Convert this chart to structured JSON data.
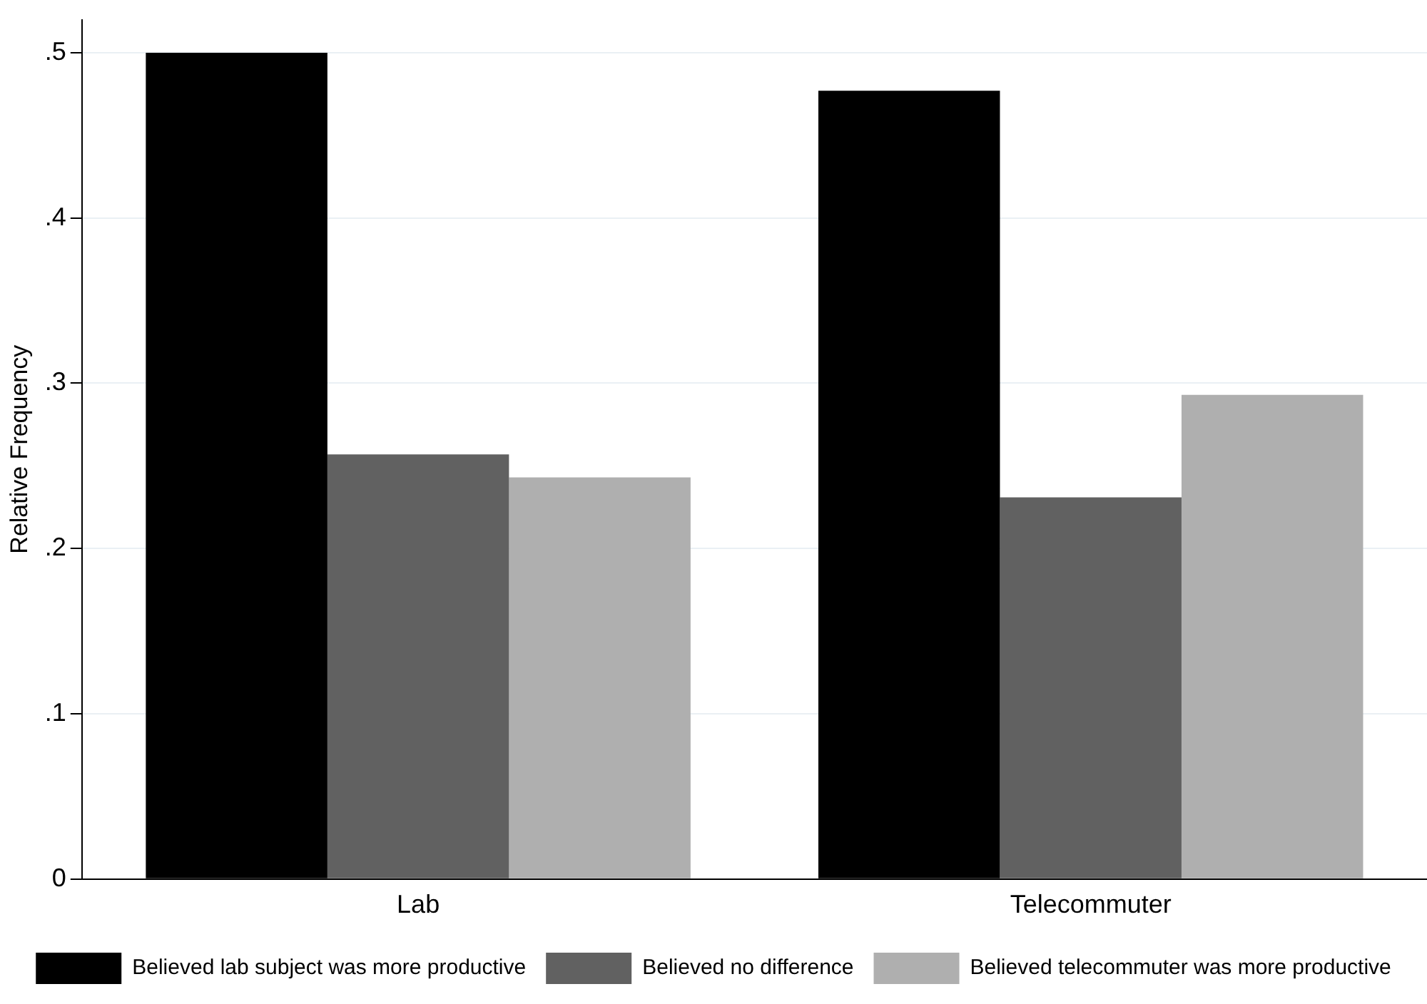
{
  "chart_data": {
    "type": "bar",
    "ylabel": "Relative Frequency",
    "categories": [
      "Lab",
      "Telecommuter"
    ],
    "series": [
      {
        "name": "Believed lab subject was more productive",
        "color": "#000000",
        "values": [
          0.5,
          0.477
        ]
      },
      {
        "name": "Believed no difference",
        "color": "#616161",
        "values": [
          0.257,
          0.231
        ]
      },
      {
        "name": "Believed telecommuter was more productive",
        "color": "#afafaf",
        "values": [
          0.243,
          0.293
        ]
      }
    ],
    "ylim": [
      0,
      0.52
    ],
    "yticks": [
      {
        "value": 0,
        "label": "0"
      },
      {
        "value": 0.1,
        "label": ".1"
      },
      {
        "value": 0.2,
        "label": ".2"
      },
      {
        "value": 0.3,
        "label": ".3"
      },
      {
        "value": 0.4,
        "label": ".4"
      },
      {
        "value": 0.5,
        "label": ".5"
      }
    ],
    "grid": "y",
    "legend": "bottom"
  }
}
